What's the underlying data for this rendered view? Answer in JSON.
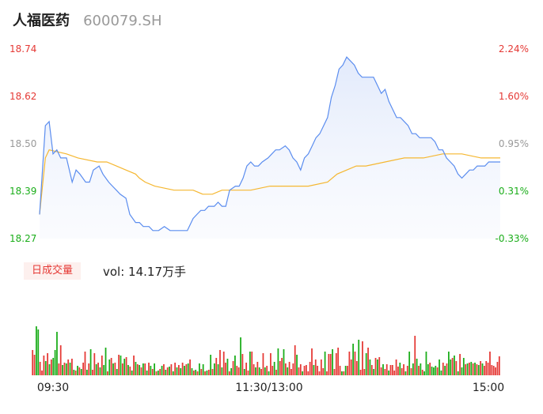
{
  "header": {
    "name": "人福医药",
    "code": "600079.SH"
  },
  "volume_panel": {
    "tab_label": "日成交量",
    "vol_text": "vol: 14.17万手"
  },
  "colors": {
    "price": "#5b8def",
    "avg": "#f5b731",
    "up": "#e53935",
    "down": "#1aad19",
    "neutral": "#999999"
  },
  "chart_data": [
    {
      "type": "line",
      "title": "",
      "y_left_ticks": [
        "18.74",
        "18.62",
        "18.50",
        "18.39",
        "18.27"
      ],
      "y_right_ticks": [
        "2.24%",
        "1.60%",
        "0.95%",
        "0.31%",
        "-0.33%"
      ],
      "ylim": [
        18.27,
        18.74
      ],
      "x_ticks": [
        "09:30",
        "11:30/13:00",
        "15:00"
      ],
      "x_range": [
        0,
        240
      ],
      "series": [
        {
          "role": "price",
          "points": [
            [
              0,
              18.33
            ],
            [
              3,
              18.55
            ],
            [
              5,
              18.56
            ],
            [
              7,
              18.48
            ],
            [
              9,
              18.49
            ],
            [
              11,
              18.47
            ],
            [
              14,
              18.47
            ],
            [
              17,
              18.41
            ],
            [
              19,
              18.44
            ],
            [
              21,
              18.43
            ],
            [
              24,
              18.41
            ],
            [
              26,
              18.41
            ],
            [
              28,
              18.44
            ],
            [
              31,
              18.45
            ],
            [
              33,
              18.43
            ],
            [
              36,
              18.41
            ],
            [
              38,
              18.4
            ],
            [
              40,
              18.39
            ],
            [
              42,
              18.38
            ],
            [
              45,
              18.37
            ],
            [
              47,
              18.33
            ],
            [
              50,
              18.31
            ],
            [
              52,
              18.31
            ],
            [
              54,
              18.3
            ],
            [
              57,
              18.3
            ],
            [
              59,
              18.29
            ],
            [
              62,
              18.29
            ],
            [
              65,
              18.3
            ],
            [
              68,
              18.29
            ],
            [
              71,
              18.29
            ],
            [
              74,
              18.29
            ],
            [
              77,
              18.29
            ],
            [
              80,
              18.32
            ],
            [
              82,
              18.33
            ],
            [
              84,
              18.34
            ],
            [
              86,
              18.34
            ],
            [
              88,
              18.35
            ],
            [
              91,
              18.35
            ],
            [
              93,
              18.36
            ],
            [
              95,
              18.35
            ],
            [
              97,
              18.35
            ],
            [
              99,
              18.39
            ],
            [
              102,
              18.4
            ],
            [
              104,
              18.4
            ],
            [
              106,
              18.42
            ],
            [
              108,
              18.45
            ],
            [
              110,
              18.46
            ],
            [
              112,
              18.45
            ],
            [
              114,
              18.45
            ],
            [
              116,
              18.46
            ],
            [
              119,
              18.47
            ],
            [
              121,
              18.48
            ],
            [
              123,
              18.49
            ],
            [
              125,
              18.49
            ],
            [
              128,
              18.5
            ],
            [
              130,
              18.49
            ],
            [
              132,
              18.47
            ],
            [
              134,
              18.46
            ],
            [
              136,
              18.44
            ],
            [
              138,
              18.47
            ],
            [
              140,
              18.48
            ],
            [
              142,
              18.5
            ],
            [
              144,
              18.52
            ],
            [
              146,
              18.53
            ],
            [
              148,
              18.55
            ],
            [
              150,
              18.57
            ],
            [
              152,
              18.62
            ],
            [
              154,
              18.65
            ],
            [
              156,
              18.69
            ],
            [
              158,
              18.7
            ],
            [
              160,
              18.72
            ],
            [
              162,
              18.71
            ],
            [
              164,
              18.7
            ],
            [
              166,
              18.68
            ],
            [
              168,
              18.67
            ],
            [
              170,
              18.67
            ],
            [
              172,
              18.67
            ],
            [
              174,
              18.67
            ],
            [
              176,
              18.65
            ],
            [
              178,
              18.63
            ],
            [
              180,
              18.64
            ],
            [
              182,
              18.61
            ],
            [
              184,
              18.59
            ],
            [
              186,
              18.57
            ],
            [
              188,
              18.57
            ],
            [
              190,
              18.56
            ],
            [
              192,
              18.55
            ],
            [
              194,
              18.53
            ],
            [
              196,
              18.53
            ],
            [
              198,
              18.52
            ],
            [
              200,
              18.52
            ],
            [
              202,
              18.52
            ],
            [
              204,
              18.52
            ],
            [
              206,
              18.51
            ],
            [
              208,
              18.49
            ],
            [
              210,
              18.49
            ],
            [
              212,
              18.47
            ],
            [
              214,
              18.46
            ],
            [
              216,
              18.45
            ],
            [
              218,
              18.43
            ],
            [
              220,
              18.42
            ],
            [
              222,
              18.43
            ],
            [
              224,
              18.44
            ],
            [
              226,
              18.44
            ],
            [
              228,
              18.45
            ],
            [
              230,
              18.45
            ],
            [
              232,
              18.45
            ],
            [
              234,
              18.46
            ],
            [
              236,
              18.46
            ],
            [
              238,
              18.46
            ],
            [
              240,
              18.46
            ]
          ]
        },
        {
          "role": "avg",
          "points": [
            [
              0,
              18.33
            ],
            [
              3,
              18.47
            ],
            [
              5,
              18.49
            ],
            [
              14,
              18.48
            ],
            [
              20,
              18.47
            ],
            [
              30,
              18.46
            ],
            [
              35,
              18.46
            ],
            [
              40,
              18.45
            ],
            [
              45,
              18.44
            ],
            [
              50,
              18.43
            ],
            [
              52,
              18.42
            ],
            [
              55,
              18.41
            ],
            [
              60,
              18.4
            ],
            [
              70,
              18.39
            ],
            [
              80,
              18.39
            ],
            [
              85,
              18.38
            ],
            [
              90,
              18.38
            ],
            [
              95,
              18.39
            ],
            [
              100,
              18.39
            ],
            [
              110,
              18.39
            ],
            [
              120,
              18.4
            ],
            [
              130,
              18.4
            ],
            [
              140,
              18.4
            ],
            [
              150,
              18.41
            ],
            [
              155,
              18.43
            ],
            [
              160,
              18.44
            ],
            [
              165,
              18.45
            ],
            [
              170,
              18.45
            ],
            [
              180,
              18.46
            ],
            [
              190,
              18.47
            ],
            [
              200,
              18.47
            ],
            [
              210,
              18.48
            ],
            [
              215,
              18.48
            ],
            [
              220,
              18.48
            ],
            [
              230,
              18.47
            ],
            [
              240,
              18.47
            ]
          ]
        }
      ]
    },
    {
      "type": "bar",
      "title": "",
      "ylim": [
        0,
        100
      ],
      "note_values": "relative volume per minute",
      "values": [
        32,
        26,
        62,
        58,
        17,
        6,
        25,
        18,
        28,
        14,
        20,
        22,
        32,
        55,
        15,
        38,
        13,
        16,
        15,
        20,
        16,
        21,
        7,
        6,
        12,
        10,
        8,
        16,
        30,
        7,
        15,
        33,
        7,
        28,
        14,
        16,
        10,
        25,
        13,
        35,
        5,
        20,
        22,
        15,
        16,
        8,
        26,
        25,
        15,
        21,
        23,
        13,
        11,
        6,
        25,
        17,
        14,
        13,
        10,
        15,
        15,
        6,
        16,
        12,
        8,
        15,
        5,
        6,
        8,
        12,
        14,
        7,
        10,
        11,
        14,
        5,
        16,
        10,
        13,
        9,
        16,
        12,
        14,
        15,
        20,
        9,
        6,
        7,
        5,
        15,
        8,
        14,
        5,
        6,
        7,
        26,
        8,
        15,
        22,
        14,
        32,
        10,
        30,
        16,
        21,
        5,
        9,
        18,
        25,
        12,
        10,
        48,
        27,
        8,
        16,
        6,
        30,
        30,
        14,
        10,
        17,
        10,
        8,
        28,
        10,
        12,
        5,
        28,
        12,
        17,
        7,
        34,
        18,
        22,
        33,
        15,
        10,
        17,
        8,
        15,
        38,
        26,
        10,
        14,
        5,
        12,
        13,
        5,
        17,
        34,
        13,
        20,
        12,
        5,
        20,
        9,
        30,
        5,
        27,
        27,
        33,
        8,
        28,
        35,
        12,
        5,
        5,
        12,
        12,
        30,
        20,
        40,
        30,
        18,
        45,
        7,
        43,
        8,
        28,
        35,
        20,
        13,
        8,
        22,
        20,
        23,
        10,
        14,
        8,
        14,
        6,
        13,
        13,
        6,
        20,
        11,
        16,
        9,
        14,
        5,
        12,
        30,
        9,
        15,
        50,
        21,
        12,
        15,
        7,
        5,
        30,
        14,
        16,
        11,
        10,
        12,
        10,
        20,
        6,
        16,
        12,
        15,
        30,
        20,
        22,
        25,
        18,
        5,
        27,
        10,
        22,
        14,
        15,
        16,
        17,
        15,
        16,
        14,
        13,
        18,
        15,
        12,
        18,
        16,
        30,
        13,
        12,
        10,
        17,
        24
      ],
      "directions": [
        1,
        1,
        -1,
        -1,
        1,
        1,
        1,
        -1,
        1,
        -1,
        1,
        -1,
        -1,
        -1,
        1,
        1,
        -1,
        1,
        -1,
        1,
        -1,
        1,
        -1,
        1,
        -1,
        1,
        -1,
        1,
        1,
        -1,
        1,
        -1,
        1,
        1,
        -1,
        1,
        -1,
        1,
        -1,
        -1,
        1,
        -1,
        1,
        -1,
        1,
        -1,
        1,
        -1,
        1,
        -1,
        1,
        -1,
        1,
        -1,
        1,
        -1,
        1,
        -1,
        1,
        -1,
        1,
        -1,
        1,
        -1,
        1,
        -1,
        1,
        -1,
        1,
        -1,
        1,
        -1,
        1,
        -1,
        1,
        -1,
        1,
        -1,
        1,
        -1,
        1,
        -1,
        1,
        -1,
        1,
        -1,
        1,
        -1,
        1,
        -1,
        1,
        -1,
        1,
        -1,
        1,
        -1,
        1,
        -1,
        1,
        -1,
        1,
        -1,
        1,
        1,
        -1,
        1,
        -1,
        1,
        -1,
        1,
        1,
        -1,
        1,
        -1,
        1,
        1,
        -1,
        1,
        1,
        -1,
        1,
        -1,
        1,
        1,
        -1,
        1,
        -1,
        1,
        1,
        -1,
        1,
        -1,
        1,
        1,
        -1,
        1,
        -1,
        1,
        1,
        1,
        1,
        -1,
        1,
        1,
        -1,
        1,
        1,
        1,
        1,
        1,
        -1,
        1,
        1,
        1,
        1,
        1,
        -1,
        1,
        1,
        1,
        -1,
        1,
        1,
        1,
        1,
        -1,
        1,
        -1,
        1,
        1,
        1,
        -1,
        1,
        1,
        -1,
        1,
        1,
        1,
        -1,
        1,
        -1,
        1,
        -1,
        1,
        -1,
        1,
        1,
        -1,
        1,
        1,
        -1,
        1,
        1,
        1,
        1,
        1,
        -1,
        1,
        1,
        -1,
        1,
        -1,
        1,
        -1,
        1,
        -1,
        1,
        -1,
        1,
        -1,
        -1,
        -1,
        1,
        -1,
        -1,
        -1,
        1,
        -1,
        -1,
        1,
        -1,
        1,
        -1,
        -1,
        1,
        -1,
        1,
        -1,
        1,
        -1,
        -1,
        1,
        -1,
        1,
        -1,
        1,
        -1,
        1,
        -1,
        1,
        -1
      ]
    }
  ]
}
